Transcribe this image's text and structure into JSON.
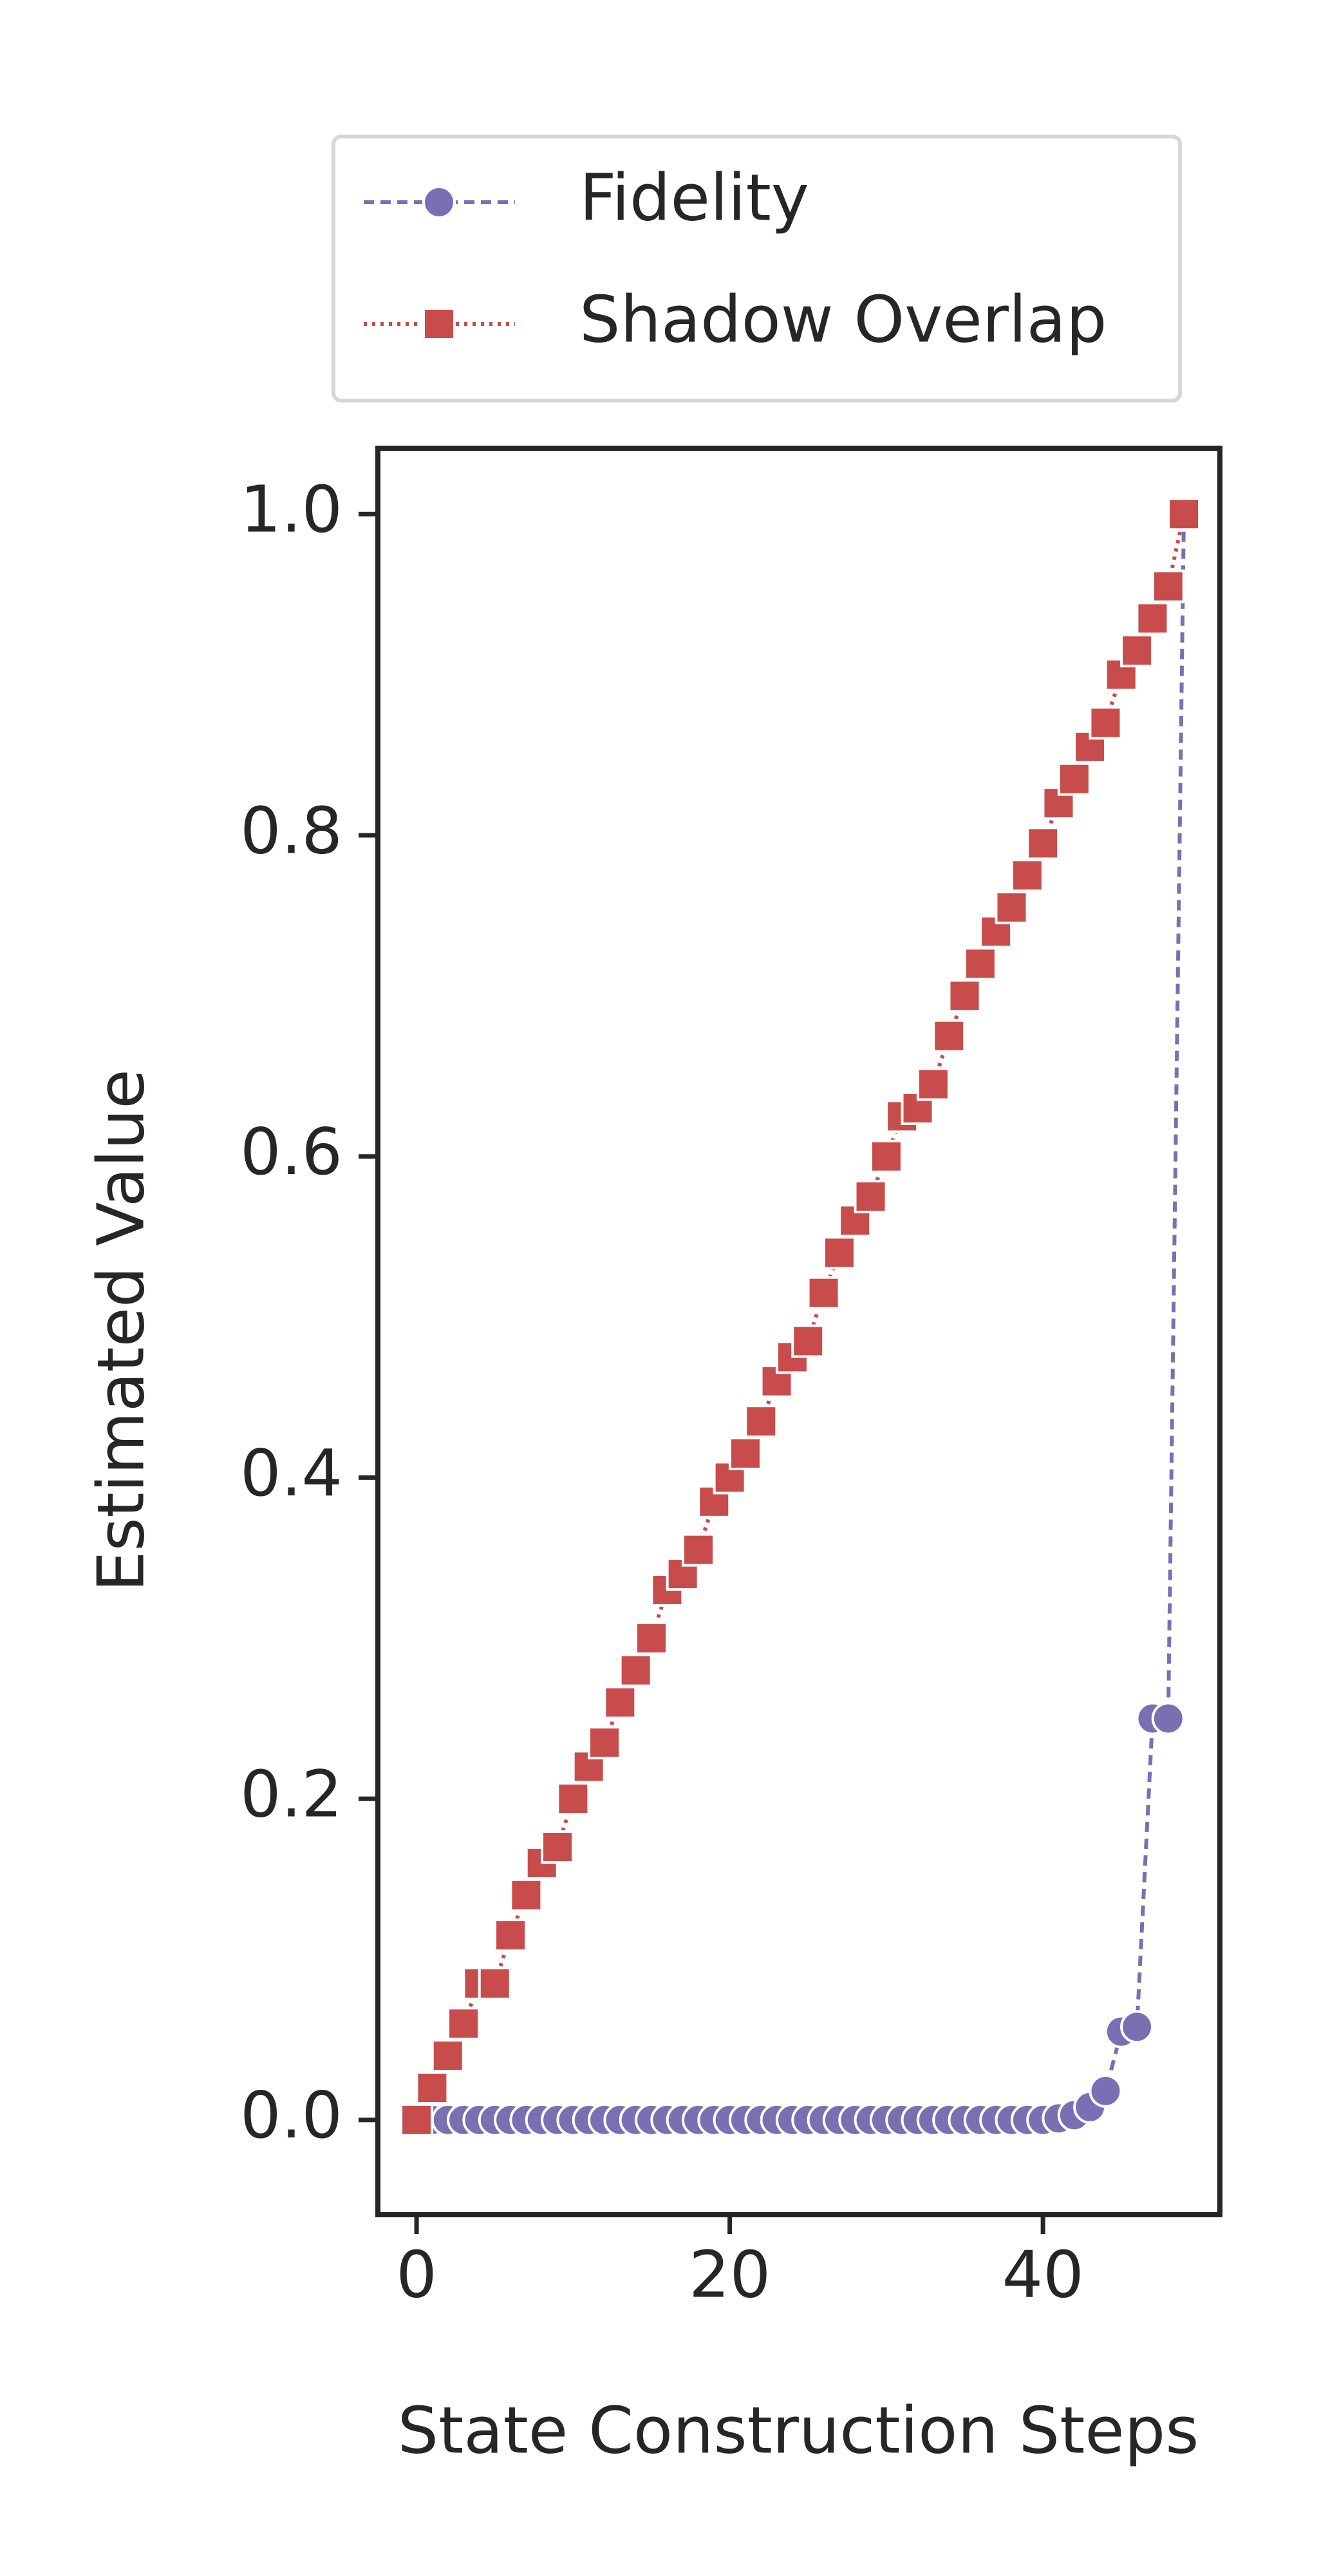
{
  "chart_data": {
    "type": "line",
    "x": [
      0,
      1,
      2,
      3,
      4,
      5,
      6,
      7,
      8,
      9,
      10,
      11,
      12,
      13,
      14,
      15,
      16,
      17,
      18,
      19,
      20,
      21,
      22,
      23,
      24,
      25,
      26,
      27,
      28,
      29,
      30,
      31,
      32,
      33,
      34,
      35,
      36,
      37,
      38,
      39,
      40,
      41,
      42,
      43,
      44,
      45,
      46,
      47,
      48,
      49
    ],
    "series": [
      {
        "name": "Fidelity",
        "color": "#7b6fb3",
        "marker": "circle",
        "linestyle": "dashed",
        "values": [
          0,
          0,
          0,
          0,
          0,
          0,
          0,
          0,
          0,
          0,
          0,
          0,
          0,
          0,
          0,
          0,
          0,
          0,
          0,
          0,
          0,
          0,
          0,
          0,
          0,
          0,
          0,
          0,
          0,
          0,
          0,
          0,
          0,
          0,
          0,
          0,
          0,
          0,
          0,
          0,
          0,
          0.001,
          0.003,
          0.008,
          0.018,
          0.055,
          0.058,
          0.25,
          0.25,
          1.0
        ]
      },
      {
        "name": "Shadow Overlap",
        "color": "#c94c4c",
        "marker": "square",
        "linestyle": "dotted",
        "values": [
          0,
          0.02,
          0.04,
          0.06,
          0.085,
          0.085,
          0.115,
          0.14,
          0.16,
          0.17,
          0.2,
          0.22,
          0.235,
          0.26,
          0.28,
          0.3,
          0.33,
          0.34,
          0.355,
          0.385,
          0.4,
          0.415,
          0.435,
          0.46,
          0.475,
          0.485,
          0.515,
          0.54,
          0.56,
          0.575,
          0.6,
          0.625,
          0.63,
          0.645,
          0.675,
          0.7,
          0.72,
          0.74,
          0.755,
          0.775,
          0.795,
          0.82,
          0.835,
          0.855,
          0.87,
          0.9,
          0.915,
          0.935,
          0.955,
          1.0
        ]
      }
    ],
    "x_label": "State Construction Steps",
    "y_label": "Estimated Value",
    "xlim": [
      -2.47,
      51.3
    ],
    "ylim": [
      -0.059,
      1.041
    ],
    "xticks": [
      0,
      20,
      40
    ],
    "yticks": [
      {
        "value": 0,
        "label": "0.0"
      },
      0.2,
      0.4,
      0.6,
      0.8,
      {
        "value": 1,
        "label": "1.0"
      }
    ]
  }
}
